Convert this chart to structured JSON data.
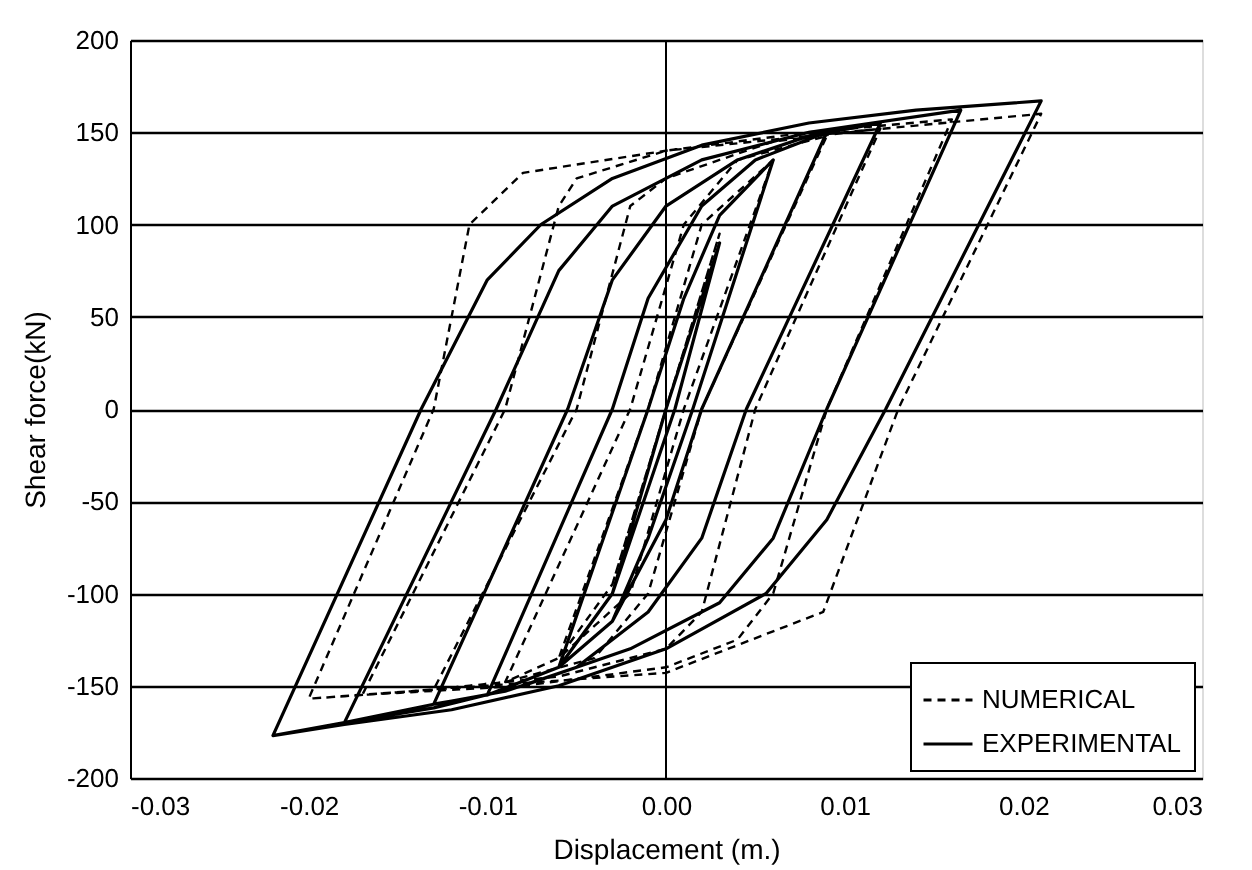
{
  "chart_data": {
    "type": "line",
    "xlabel": "Displacement (m.)",
    "ylabel": "Shear force(kN)",
    "xlim": [
      -0.03,
      0.03
    ],
    "xticks": [
      {
        "value": -0.03,
        "label": "-0.03"
      },
      {
        "value": -0.02,
        "label": "-0.02"
      },
      {
        "value": -0.01,
        "label": "-0.01"
      },
      {
        "value": 0,
        "label": "0.00"
      },
      {
        "value": 0.01,
        "label": "0.01"
      },
      {
        "value": 0.02,
        "label": "0.02"
      },
      {
        "value": 0.03,
        "label": "0.03"
      }
    ],
    "ylim": [
      -200,
      200
    ],
    "yticks": [
      -200,
      -150,
      -100,
      -50,
      0,
      50,
      100,
      150,
      200
    ],
    "grid": "y",
    "legend": "bottom right",
    "marker": "none",
    "ref_lines": [
      {
        "axis": "x",
        "value": 0,
        "color": "#000000"
      }
    ],
    "series": [
      {
        "name": "NUMERICAL",
        "color": "#000000",
        "line_style": "dashed",
        "x": [
          -0.003,
          0.0,
          0.003,
          0.0,
          -0.003,
          -0.006,
          -0.001,
          0.002,
          0.006,
          0.001,
          -0.002,
          -0.006,
          -0.009,
          -0.002,
          0.001,
          0.004,
          0.009,
          0.002,
          -0.001,
          -0.004,
          -0.009,
          -0.013,
          -0.005,
          -0.002,
          0.0,
          0.006,
          0.012,
          0.005,
          0.002,
          0.0,
          -0.006,
          -0.013,
          -0.017,
          -0.009,
          -0.006,
          -0.005,
          0.0,
          0.008,
          0.016,
          0.009,
          0.006,
          0.004,
          0.0,
          -0.008,
          -0.017,
          -0.02,
          -0.013,
          -0.011,
          -0.008,
          0.0,
          0.01,
          0.021,
          0.013,
          0.0088,
          0.0,
          -0.01,
          -0.02
        ],
        "values": [
          -95,
          0,
          95,
          0,
          -95,
          -135,
          0,
          100,
          135,
          0,
          -100,
          -135,
          -148,
          0,
          100,
          135,
          148,
          0,
          -100,
          -135,
          -148,
          -152,
          0,
          110,
          125,
          145,
          152,
          0,
          -110,
          -130,
          -145,
          -152,
          -155,
          0,
          110,
          125,
          140,
          150,
          157,
          0,
          -100,
          -125,
          -140,
          -150,
          -155,
          -157,
          0,
          100,
          128,
          140,
          150,
          160,
          0,
          -110,
          -143,
          -150,
          -157
        ]
      },
      {
        "name": "EXPERIMENTAL",
        "color": "#000000",
        "line_style": "solid",
        "x": [
          -0.003,
          0.0,
          0.003,
          0.0005,
          -0.003,
          -0.006,
          -0.001,
          0.001,
          0.003,
          0.006,
          0.0015,
          -0.001,
          -0.003,
          -0.006,
          -0.01,
          -0.003,
          -0.001,
          0.002,
          0.005,
          0.009,
          0.002,
          0.0,
          -0.003,
          -0.006,
          -0.01,
          -0.013,
          -0.0055,
          -0.003,
          0.0,
          0.004,
          0.008,
          0.012,
          0.0045,
          0.002,
          -0.001,
          -0.005,
          -0.009,
          -0.013,
          -0.018,
          -0.0095,
          -0.006,
          -0.003,
          0.002,
          0.008,
          0.0165,
          0.009,
          0.006,
          0.003,
          -0.002,
          -0.008,
          -0.013,
          -0.018,
          -0.022,
          -0.0137,
          -0.01,
          -0.007,
          -0.003,
          0.002,
          0.008,
          0.014,
          0.021,
          0.0123,
          0.009,
          0.0056,
          0.0,
          -0.006,
          -0.012,
          -0.018,
          -0.022
        ],
        "values": [
          -100,
          0,
          90,
          0,
          -100,
          -140,
          0,
          60,
          105,
          135,
          0,
          -70,
          -115,
          -140,
          -155,
          0,
          60,
          110,
          135,
          150,
          0,
          -60,
          -115,
          -140,
          -155,
          -160,
          0,
          70,
          110,
          135,
          148,
          155,
          0,
          -70,
          -110,
          -140,
          -153,
          -160,
          -170,
          0,
          75,
          110,
          135,
          150,
          162,
          0,
          -70,
          -105,
          -130,
          -150,
          -162,
          -170,
          -177,
          0,
          70,
          100,
          125,
          143,
          155,
          162,
          167,
          0,
          -60,
          -100,
          -130,
          -150,
          -163,
          -171,
          -177
        ]
      }
    ]
  }
}
